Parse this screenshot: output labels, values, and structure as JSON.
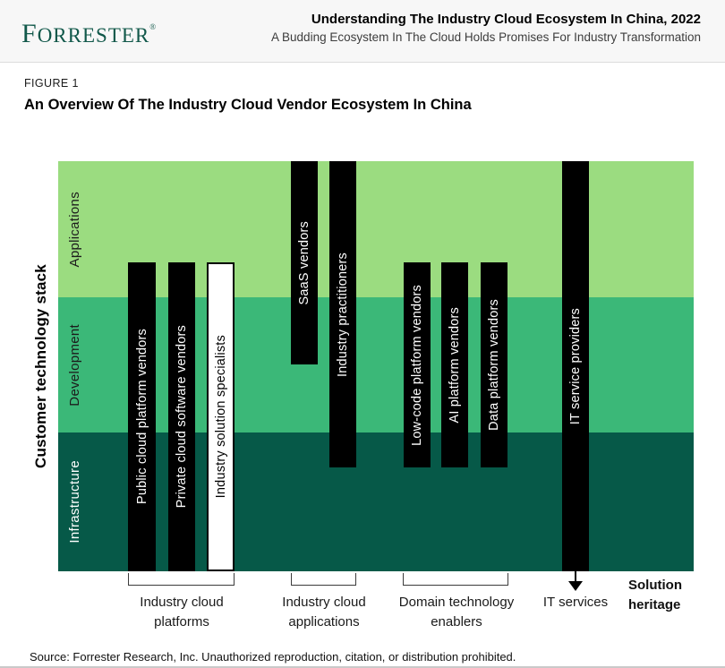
{
  "header": {
    "logo_text": "FORRESTER",
    "logo_mark": "®",
    "title": "Understanding The Industry Cloud Ecosystem In China, 2022",
    "subtitle": "A Budding Ecosystem In The Cloud Holds Promises For Industry Transformation"
  },
  "figure": {
    "label": "FIGURE 1",
    "title": "An Overview Of The Industry Cloud Vendor Ecosystem In China"
  },
  "chart_data": {
    "type": "bar",
    "title": "An Overview Of The Industry Cloud Vendor Ecosystem In China",
    "ylabel": "Customer technology stack",
    "xlabel": "Solution heritage",
    "bands": [
      {
        "label": "Applications",
        "color": "#9bdc80",
        "text_color": "#1c1c1c"
      },
      {
        "label": "Development",
        "color": "#3bb878",
        "text_color": "#1c1c1c"
      },
      {
        "label": "Infrastructure",
        "color": "#065948",
        "text_color": "#ffffff"
      }
    ],
    "bars": [
      {
        "label": "Public cloud platform vendors",
        "group": "Industry cloud platforms",
        "style": "solid-black",
        "coverage": [
          "Applications (lower portion)",
          "Development",
          "Infrastructure"
        ]
      },
      {
        "label": "Private cloud software vendors",
        "group": "Industry cloud platforms",
        "style": "solid-black",
        "coverage": [
          "Applications (lower portion)",
          "Development",
          "Infrastructure"
        ]
      },
      {
        "label": "Industry solution specialists",
        "group": "Industry cloud platforms",
        "style": "white-outlined",
        "coverage": [
          "Applications (lower portion)",
          "Development",
          "Infrastructure"
        ]
      },
      {
        "label": "SaaS vendors",
        "group": "Industry cloud applications",
        "style": "solid-black",
        "coverage": [
          "Applications",
          "Development (upper portion)"
        ]
      },
      {
        "label": "Industry practitioners",
        "group": "Industry cloud applications",
        "style": "solid-black",
        "coverage": [
          "Applications",
          "Development",
          "Infrastructure (upper portion)"
        ]
      },
      {
        "label": "Low-code platform vendors",
        "group": "Domain technology enablers",
        "style": "solid-black",
        "coverage": [
          "Applications (lower portion)",
          "Development",
          "Infrastructure (upper portion)"
        ]
      },
      {
        "label": "AI platform vendors",
        "group": "Domain technology enablers",
        "style": "solid-black",
        "coverage": [
          "Applications (lower portion)",
          "Development",
          "Infrastructure (upper portion)"
        ]
      },
      {
        "label": "Data platform vendors",
        "group": "Domain technology enablers",
        "style": "solid-black",
        "coverage": [
          "Applications (lower portion)",
          "Development",
          "Infrastructure (upper portion)"
        ]
      },
      {
        "label": "IT service providers",
        "group": "IT services",
        "style": "solid-black-with-down-arrow",
        "coverage": [
          "Applications",
          "Development",
          "Infrastructure"
        ]
      }
    ],
    "groups": [
      {
        "line1": "Industry cloud",
        "line2": "platforms"
      },
      {
        "line1": "Industry cloud",
        "line2": "applications"
      },
      {
        "line1": "Domain technology",
        "line2": "enablers"
      }
    ],
    "it_services_label": "IT services",
    "solution_heritage": {
      "line1": "Solution",
      "line2": "heritage"
    }
  },
  "source": "Source: Forrester Research, Inc. Unauthorized reproduction, citation, or distribution prohibited."
}
